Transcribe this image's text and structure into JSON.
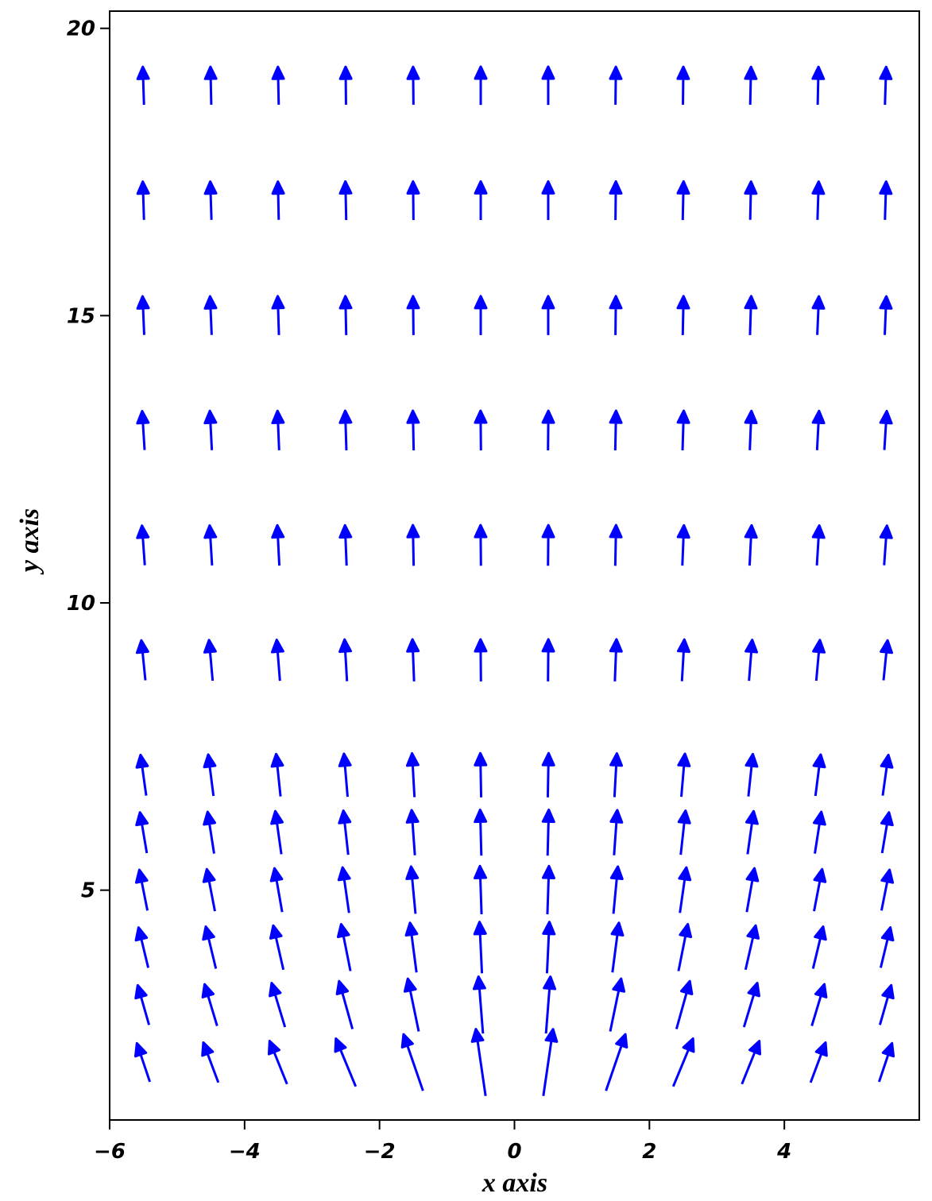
{
  "chart_data": {
    "type": "quiver",
    "xlabel": "x axis",
    "ylabel": "y axis",
    "xlim": [
      -6,
      6
    ],
    "ylim": [
      1,
      20.3
    ],
    "xticks": [
      {
        "value": -6,
        "label": "−6"
      },
      {
        "value": -4,
        "label": "−4"
      },
      {
        "value": -2,
        "label": "−2"
      },
      0,
      2,
      4
    ],
    "yticks": [
      5,
      10,
      15,
      20
    ],
    "color": "#0000ff",
    "x": [
      -5.5,
      -4.5,
      -3.5,
      -2.5,
      -1.5,
      -0.5,
      0.5,
      1.5,
      2.5,
      3.5,
      4.5,
      5.5
    ],
    "y": [
      2,
      3,
      4,
      5,
      6,
      7,
      9,
      11,
      13,
      15,
      17,
      19
    ],
    "u": [
      [
        -0.32,
        -0.37,
        -0.43,
        -0.49,
        -0.48,
        -0.24,
        0.24,
        0.48,
        0.49,
        0.43,
        0.37,
        0.32
      ],
      [
        -0.28,
        -0.31,
        -0.33,
        -0.33,
        -0.27,
        -0.11,
        0.11,
        0.27,
        0.33,
        0.33,
        0.31,
        0.28
      ],
      [
        -0.24,
        -0.25,
        -0.25,
        -0.23,
        -0.16,
        -0.06,
        0.06,
        0.16,
        0.23,
        0.25,
        0.25,
        0.24
      ],
      [
        -0.2,
        -0.2,
        -0.19,
        -0.16,
        -0.11,
        -0.04,
        0.04,
        0.11,
        0.16,
        0.19,
        0.2,
        0.2
      ],
      [
        -0.17,
        -0.16,
        -0.15,
        -0.12,
        -0.08,
        -0.03,
        0.03,
        0.08,
        0.12,
        0.15,
        0.16,
        0.17
      ],
      [
        -0.14,
        -0.13,
        -0.11,
        -0.09,
        -0.06,
        -0.02,
        0.02,
        0.06,
        0.09,
        0.11,
        0.13,
        0.14
      ],
      [
        -0.1,
        -0.09,
        -0.08,
        -0.06,
        -0.04,
        -0.01,
        0.01,
        0.04,
        0.06,
        0.08,
        0.09,
        0.1
      ],
      [
        -0.07,
        -0.06,
        -0.05,
        -0.04,
        -0.02,
        -0.01,
        0.01,
        0.02,
        0.04,
        0.05,
        0.06,
        0.07
      ],
      [
        -0.06,
        -0.05,
        -0.04,
        -0.03,
        -0.02,
        -0.01,
        0.01,
        0.02,
        0.03,
        0.04,
        0.05,
        0.06
      ],
      [
        -0.04,
        -0.04,
        -0.03,
        -0.02,
        -0.01,
        0,
        0,
        0.01,
        0.02,
        0.03,
        0.04,
        0.04
      ],
      [
        -0.03,
        -0.03,
        -0.02,
        -0.02,
        -0.01,
        0,
        0,
        0.01,
        0.02,
        0.02,
        0.03,
        0.03
      ],
      [
        -0.03,
        -0.02,
        -0.02,
        -0.01,
        -0.01,
        0,
        0,
        0.01,
        0.01,
        0.02,
        0.02,
        0.03
      ]
    ],
    "v": [
      [
        1.12,
        1.16,
        1.25,
        1.39,
        1.64,
        1.94,
        1.94,
        1.64,
        1.39,
        1.25,
        1.16,
        1.12
      ],
      [
        1.15,
        1.21,
        1.28,
        1.39,
        1.53,
        1.65,
        1.65,
        1.53,
        1.39,
        1.28,
        1.21,
        1.15
      ],
      [
        1.17,
        1.22,
        1.28,
        1.36,
        1.44,
        1.49,
        1.49,
        1.44,
        1.36,
        1.28,
        1.22,
        1.17
      ],
      [
        1.18,
        1.22,
        1.27,
        1.32,
        1.37,
        1.4,
        1.4,
        1.37,
        1.32,
        1.27,
        1.22,
        1.18
      ],
      [
        1.18,
        1.21,
        1.25,
        1.28,
        1.31,
        1.33,
        1.33,
        1.31,
        1.28,
        1.25,
        1.21,
        1.18
      ],
      [
        1.18,
        1.2,
        1.23,
        1.25,
        1.27,
        1.28,
        1.28,
        1.27,
        1.25,
        1.23,
        1.2,
        1.18
      ],
      [
        1.16,
        1.18,
        1.19,
        1.21,
        1.22,
        1.22,
        1.22,
        1.22,
        1.21,
        1.19,
        1.18,
        1.16
      ],
      [
        1.15,
        1.16,
        1.17,
        1.17,
        1.18,
        1.18,
        1.18,
        1.18,
        1.17,
        1.17,
        1.16,
        1.15
      ],
      [
        1.13,
        1.14,
        1.14,
        1.15,
        1.15,
        1.15,
        1.15,
        1.15,
        1.15,
        1.14,
        1.14,
        1.13
      ],
      [
        1.12,
        1.12,
        1.13,
        1.13,
        1.13,
        1.13,
        1.13,
        1.13,
        1.13,
        1.13,
        1.12,
        1.12
      ],
      [
        1.11,
        1.11,
        1.11,
        1.12,
        1.12,
        1.12,
        1.12,
        1.12,
        1.12,
        1.11,
        1.11,
        1.11
      ],
      [
        1.1,
        1.1,
        1.1,
        1.1,
        1.1,
        1.11,
        1.11,
        1.1,
        1.1,
        1.1,
        1.1,
        1.1
      ]
    ]
  }
}
